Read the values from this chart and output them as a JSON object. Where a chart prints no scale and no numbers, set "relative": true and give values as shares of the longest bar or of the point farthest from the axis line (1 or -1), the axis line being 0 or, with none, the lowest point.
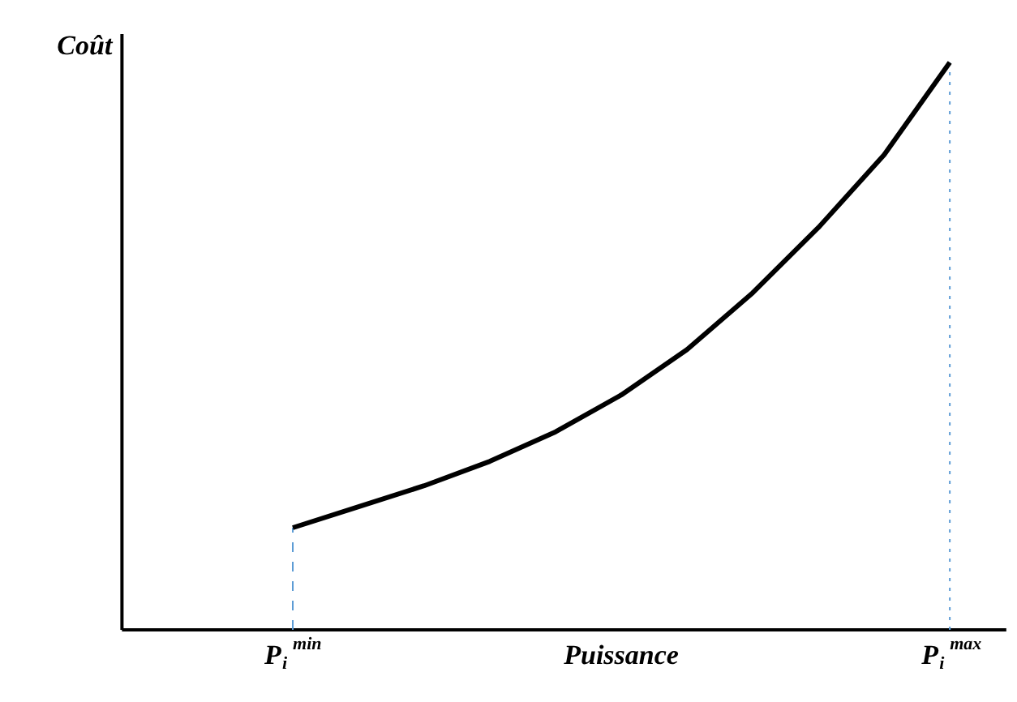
{
  "chart_data": {
    "type": "line",
    "relative": true,
    "xlabel": "Puissance",
    "annotations": [
      "Coût"
    ],
    "categories": [
      "P$_{i}$$^{min}$",
      null,
      null,
      null,
      null,
      null,
      null,
      null,
      null,
      null,
      "P$_{i}$$^{max}$"
    ],
    "series": [
      {
        "color": "#000000",
        "values": [
          0.18,
          0.217,
          0.254,
          0.297,
          0.349,
          0.414,
          0.494,
          0.594,
          0.709,
          0.837,
          1
        ]
      }
    ],
    "ref_lines": [
      {
        "axis": "x",
        "value": "P$_{i}$$^{min}$",
        "color": "#5b9bd5",
        "line_style": "dashed"
      },
      {
        "axis": "x",
        "value": "P$_{i}$$^{max}$",
        "color": "#5b9bd5",
        "line_style": "dotted"
      }
    ],
    "grid": false,
    "marker": "none",
    "line_style": "solid"
  }
}
